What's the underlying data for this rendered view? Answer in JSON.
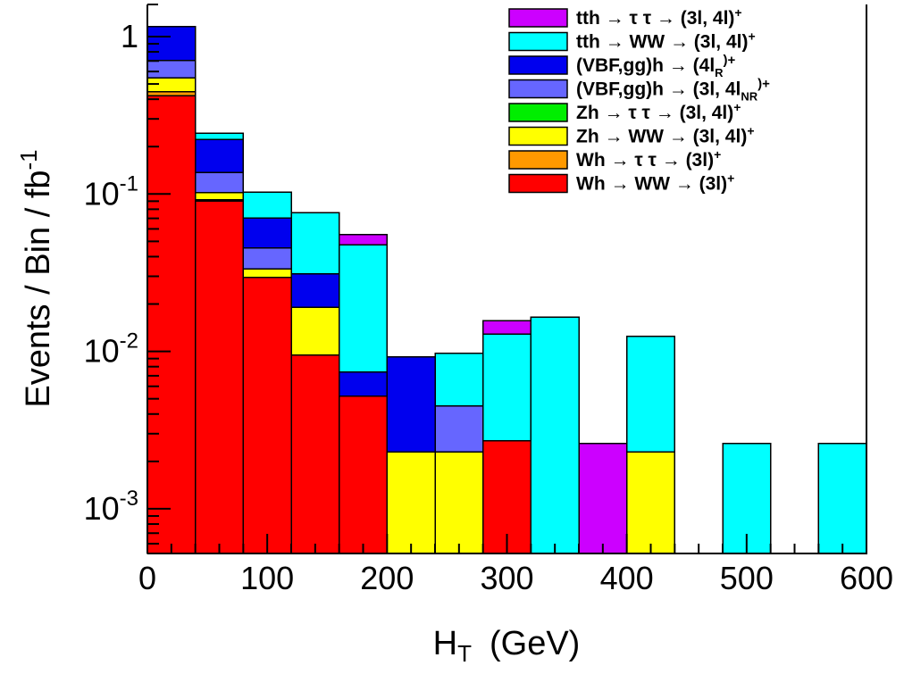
{
  "chart_data": {
    "type": "bar",
    "stacked": true,
    "bin_edges": [
      0,
      40,
      80,
      120,
      160,
      200,
      240,
      280,
      320,
      360,
      400,
      440,
      480,
      520,
      560,
      600
    ],
    "xlabel": "H",
    "xlabel_sub": "T",
    "xlabel_unit": "(GeV)",
    "ylabel": "Events / Bin / fb",
    "ylabel_sup": "-1",
    "yscale": "log",
    "xlim": [
      0,
      600
    ],
    "ylim": [
      0.00052,
      1.6
    ],
    "x_ticks": [
      "0",
      "100",
      "200",
      "300",
      "400",
      "500",
      "600"
    ],
    "y_ticks": [
      {
        "value": 1,
        "base": "1",
        "exp": ""
      },
      {
        "value": 0.1,
        "base": "10",
        "exp": "-1"
      },
      {
        "value": 0.01,
        "base": "10",
        "exp": "-2"
      },
      {
        "value": 0.001,
        "base": "10",
        "exp": "-3"
      }
    ],
    "legend_position": "top-right",
    "series": [
      {
        "label": "Wh → WW → (3l)",
        "sup": "+",
        "sub": "",
        "color": "#ff0000",
        "values": [
          0.42,
          0.09,
          0.0295,
          0.0095,
          0.0052,
          0,
          0,
          0.0027,
          0,
          0,
          0,
          0,
          0,
          0,
          0
        ]
      },
      {
        "label": "Wh → τ τ → (3l)",
        "sup": "+",
        "sub": "",
        "color": "#ff9900",
        "values": [
          0.025,
          0.002,
          0,
          0,
          0,
          0,
          0,
          0,
          0,
          0,
          0,
          0,
          0,
          0,
          0
        ]
      },
      {
        "label": "Zh → WW → (3l, 4l)",
        "sup": "+",
        "sub": "",
        "color": "#ffff00",
        "values": [
          0.1,
          0.01,
          0.004,
          0.0095,
          0,
          0.0023,
          0.0023,
          0,
          0,
          0,
          0.0023,
          0,
          0,
          0,
          0
        ]
      },
      {
        "label": "Zh → τ τ → (3l, 4l)",
        "sup": "+",
        "sub": "",
        "color": "#00ee00",
        "values": [
          0,
          0,
          0,
          0,
          0,
          0,
          0,
          0,
          0,
          0,
          0,
          0,
          0,
          0,
          0
        ]
      },
      {
        "label": "(VBF,gg)h → (3l, 4l",
        "sup": ")+",
        "sub": "NR",
        "color": "#6666ff",
        "values": [
          0.16,
          0.035,
          0.012,
          0,
          0,
          0,
          0.0022,
          0,
          0,
          0,
          0,
          0,
          0,
          0,
          0
        ]
      },
      {
        "label": "(VBF,gg)h → (4l",
        "sup": ")+",
        "sub": "R",
        "color": "#0000ee",
        "values": [
          0.45,
          0.085,
          0.025,
          0.012,
          0.0022,
          0.0069,
          0,
          0,
          0,
          0,
          0,
          0,
          0,
          0,
          0
        ]
      },
      {
        "label": "tth → WW → (3l, 4l)",
        "sup": "+",
        "sub": "",
        "color": "#00ffff",
        "values": [
          0.002,
          0.022,
          0.032,
          0.045,
          0.04,
          0,
          0.0052,
          0.0102,
          0.0165,
          0,
          0.0102,
          0,
          0.0026,
          0,
          0.0026
        ]
      },
      {
        "label": "tth → τ τ → (3l, 4l)",
        "sup": "+",
        "sub": "",
        "color": "#cc00ff",
        "values": [
          0,
          0,
          0,
          0,
          0.008,
          0,
          0,
          0.0028,
          0,
          0.0026,
          0,
          0,
          0,
          0,
          0
        ]
      }
    ],
    "legend_order": [
      7,
      6,
      5,
      4,
      3,
      2,
      1,
      0
    ]
  }
}
